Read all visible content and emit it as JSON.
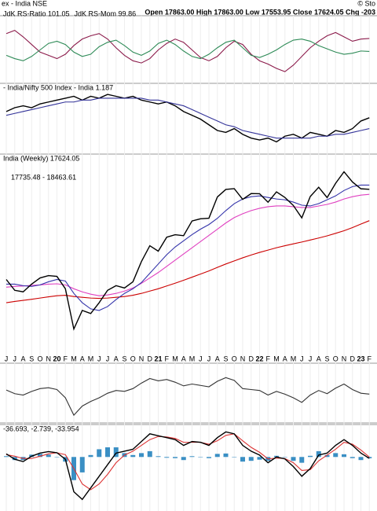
{
  "header": {
    "title": "ex - India NSE",
    "quote": "Open 17863.00  High 17863.00  Low 17553.95  Close 17624.05  Chg -203",
    "credit": "© Sto"
  },
  "chart_data": [
    {
      "type": "line",
      "ylim": [
        97,
        103
      ],
      "series": [
        {
          "name": "JdK RS-Ratio 101.05",
          "color": "#8b1a4a",
          "values": [
            101.5,
            101.8,
            101.2,
            100.5,
            99.8,
            99.5,
            99.2,
            99.6,
            100.4,
            101.0,
            101.3,
            101.5,
            101.0,
            100.2,
            99.5,
            99.0,
            98.8,
            99.2,
            100.0,
            100.6,
            101.0,
            100.7,
            100.0,
            99.3,
            99.0,
            99.4,
            100.2,
            100.8,
            100.5,
            99.6,
            99.0,
            98.7,
            98.3,
            98.0,
            98.6,
            99.4,
            100.2,
            100.8,
            101.3,
            101.6,
            101.2,
            100.8,
            101.0,
            101.05
          ]
        },
        {
          "name": "JdK RS-Mom 99.86",
          "color": "#2e8b57",
          "values": [
            99.5,
            99.2,
            99.0,
            99.4,
            100.0,
            100.6,
            100.8,
            100.5,
            99.8,
            99.4,
            99.6,
            100.3,
            100.7,
            100.9,
            100.4,
            99.8,
            99.5,
            99.9,
            100.6,
            100.9,
            100.5,
            99.9,
            99.4,
            99.2,
            99.6,
            100.2,
            100.7,
            100.9,
            100.2,
            99.5,
            99.3,
            99.6,
            100.0,
            100.5,
            100.9,
            101.0,
            100.8,
            100.4,
            100.1,
            99.8,
            99.6,
            99.7,
            99.9,
            99.86
          ]
        }
      ]
    },
    {
      "type": "line",
      "title": "- India/Nifty 500 Index - India 1.187",
      "ylim": [
        1.0,
        1.36
      ],
      "series": [
        {
          "color": "#000000",
          "values": [
            1.22,
            1.24,
            1.25,
            1.24,
            1.26,
            1.27,
            1.28,
            1.29,
            1.3,
            1.28,
            1.3,
            1.29,
            1.31,
            1.3,
            1.29,
            1.3,
            1.28,
            1.27,
            1.26,
            1.27,
            1.25,
            1.22,
            1.2,
            1.18,
            1.15,
            1.12,
            1.11,
            1.13,
            1.1,
            1.08,
            1.07,
            1.08,
            1.06,
            1.09,
            1.1,
            1.08,
            1.11,
            1.1,
            1.09,
            1.12,
            1.11,
            1.13,
            1.17,
            1.187
          ]
        },
        {
          "color": "#333399",
          "values": [
            1.2,
            1.21,
            1.22,
            1.23,
            1.24,
            1.25,
            1.26,
            1.27,
            1.27,
            1.28,
            1.28,
            1.29,
            1.29,
            1.29,
            1.29,
            1.29,
            1.29,
            1.28,
            1.28,
            1.27,
            1.26,
            1.25,
            1.23,
            1.21,
            1.19,
            1.17,
            1.15,
            1.14,
            1.12,
            1.11,
            1.1,
            1.09,
            1.08,
            1.08,
            1.08,
            1.08,
            1.08,
            1.09,
            1.09,
            1.1,
            1.1,
            1.11,
            1.12,
            1.13
          ]
        }
      ]
    },
    {
      "type": "line",
      "title": "India (Weekly) 17624.05",
      "subtitle": "17735.48 - 18463.61",
      "ylim": [
        7000,
        19800
      ],
      "categories": [
        "J",
        "J",
        "A",
        "S",
        "O",
        "N",
        "20",
        "F",
        "M",
        "A",
        "M",
        "J",
        "J",
        "A",
        "S",
        "O",
        "N",
        "D",
        "21",
        "F",
        "M",
        "A",
        "M",
        "J",
        "J",
        "A",
        "S",
        "O",
        "N",
        "D",
        "22",
        "F",
        "M",
        "A",
        "M",
        "J",
        "J",
        "A",
        "S",
        "O",
        "N",
        "D",
        "23",
        "F"
      ],
      "series": [
        {
          "color": "#cc0000",
          "values": [
            10300,
            10380,
            10450,
            10520,
            10600,
            10680,
            10750,
            10780,
            10700,
            10650,
            10600,
            10580,
            10600,
            10650,
            10700,
            10780,
            10900,
            11050,
            11200,
            11380,
            11560,
            11750,
            11950,
            12150,
            12350,
            12580,
            12800,
            13000,
            13200,
            13380,
            13550,
            13700,
            13850,
            13980,
            14100,
            14220,
            14350,
            14480,
            14620,
            14780,
            14950,
            15150,
            15380,
            15600
          ]
        },
        {
          "color": "#e040c0",
          "values": [
            11300,
            11350,
            11380,
            11420,
            11450,
            11500,
            11520,
            11450,
            11200,
            11000,
            10850,
            10750,
            10800,
            10900,
            11050,
            11250,
            11550,
            11900,
            12250,
            12650,
            13050,
            13450,
            13850,
            14250,
            14650,
            15050,
            15450,
            15800,
            16050,
            16250,
            16400,
            16500,
            16550,
            16550,
            16500,
            16450,
            16450,
            16550,
            16650,
            16800,
            17000,
            17150,
            17250,
            17300
          ]
        },
        {
          "color": "#3333aa",
          "values": [
            11500,
            11500,
            11400,
            11350,
            11450,
            11650,
            11800,
            11700,
            10900,
            10300,
            9900,
            9800,
            10050,
            10500,
            10900,
            11200,
            11600,
            12200,
            12800,
            13400,
            13900,
            14300,
            14700,
            15050,
            15350,
            15750,
            16250,
            16700,
            17000,
            17150,
            17200,
            17100,
            17000,
            16950,
            16800,
            16600,
            16550,
            16700,
            16950,
            17200,
            17550,
            17800,
            17900,
            17900
          ]
        },
        {
          "color": "#000000",
          "values": [
            11800,
            11100,
            11000,
            11500,
            11900,
            12050,
            12000,
            11200,
            8600,
            9800,
            9600,
            10300,
            11100,
            11400,
            11250,
            11650,
            12950,
            13980,
            13630,
            14530,
            14690,
            14630,
            15580,
            15720,
            15760,
            17130,
            17620,
            17670,
            16980,
            17350,
            17340,
            16790,
            17460,
            17100,
            16580,
            15780,
            17160,
            17760,
            17090,
            18010,
            18760,
            18100,
            17660,
            17624
          ]
        }
      ]
    },
    {
      "type": "line",
      "ylim": [
        -6,
        6
      ],
      "series": [
        {
          "color": "#333333",
          "values": [
            0.5,
            -0.3,
            -0.6,
            0.2,
            0.8,
            1.0,
            0.6,
            -1.2,
            -5.0,
            -3.0,
            -2.0,
            -1.2,
            -0.2,
            0.4,
            0.2,
            0.8,
            2.0,
            3.0,
            2.5,
            2.8,
            2.2,
            1.4,
            1.8,
            1.5,
            1.2,
            2.4,
            3.2,
            2.6,
            0.8,
            0.6,
            0.4,
            -0.6,
            0.2,
            -0.4,
            -1.2,
            -2.2,
            -0.6,
            0.4,
            -0.3,
            0.9,
            1.8,
            0.6,
            -0.2,
            -0.4
          ]
        }
      ]
    },
    {
      "type": "line",
      "title": "-36.693, -2.739, -33.954",
      "ylim": [
        -1400,
        800
      ],
      "series": [
        {
          "type": "bar",
          "color": "#3a8fc4",
          "values": [
            20,
            -80,
            -80,
            60,
            80,
            60,
            0,
            -120,
            -600,
            -400,
            50,
            200,
            250,
            250,
            100,
            50,
            100,
            150,
            20,
            -20,
            -30,
            -80,
            20,
            0,
            -30,
            80,
            90,
            0,
            -120,
            -100,
            -70,
            -100,
            30,
            -10,
            -100,
            -150,
            30,
            150,
            50,
            100,
            70,
            -30,
            -80,
            -33.954
          ]
        },
        {
          "color": "#dd3333",
          "values": [
            60,
            20,
            -40,
            -40,
            20,
            80,
            110,
            60,
            -300,
            -700,
            -850,
            -700,
            -450,
            -150,
            50,
            150,
            300,
            450,
            530,
            520,
            480,
            380,
            380,
            380,
            330,
            420,
            560,
            600,
            420,
            250,
            120,
            -50,
            -30,
            -40,
            -150,
            -350,
            -330,
            -100,
            50,
            200,
            380,
            330,
            180,
            -2.739
          ]
        },
        {
          "color": "#000000",
          "values": [
            80,
            -60,
            -120,
            20,
            100,
            140,
            110,
            -60,
            -900,
            -1100,
            -800,
            -500,
            -200,
            100,
            150,
            200,
            400,
            600,
            550,
            500,
            450,
            300,
            400,
            380,
            300,
            500,
            650,
            600,
            300,
            150,
            50,
            -150,
            0,
            -50,
            -250,
            -500,
            -300,
            50,
            100,
            300,
            450,
            300,
            100,
            -36.693
          ]
        }
      ]
    }
  ]
}
